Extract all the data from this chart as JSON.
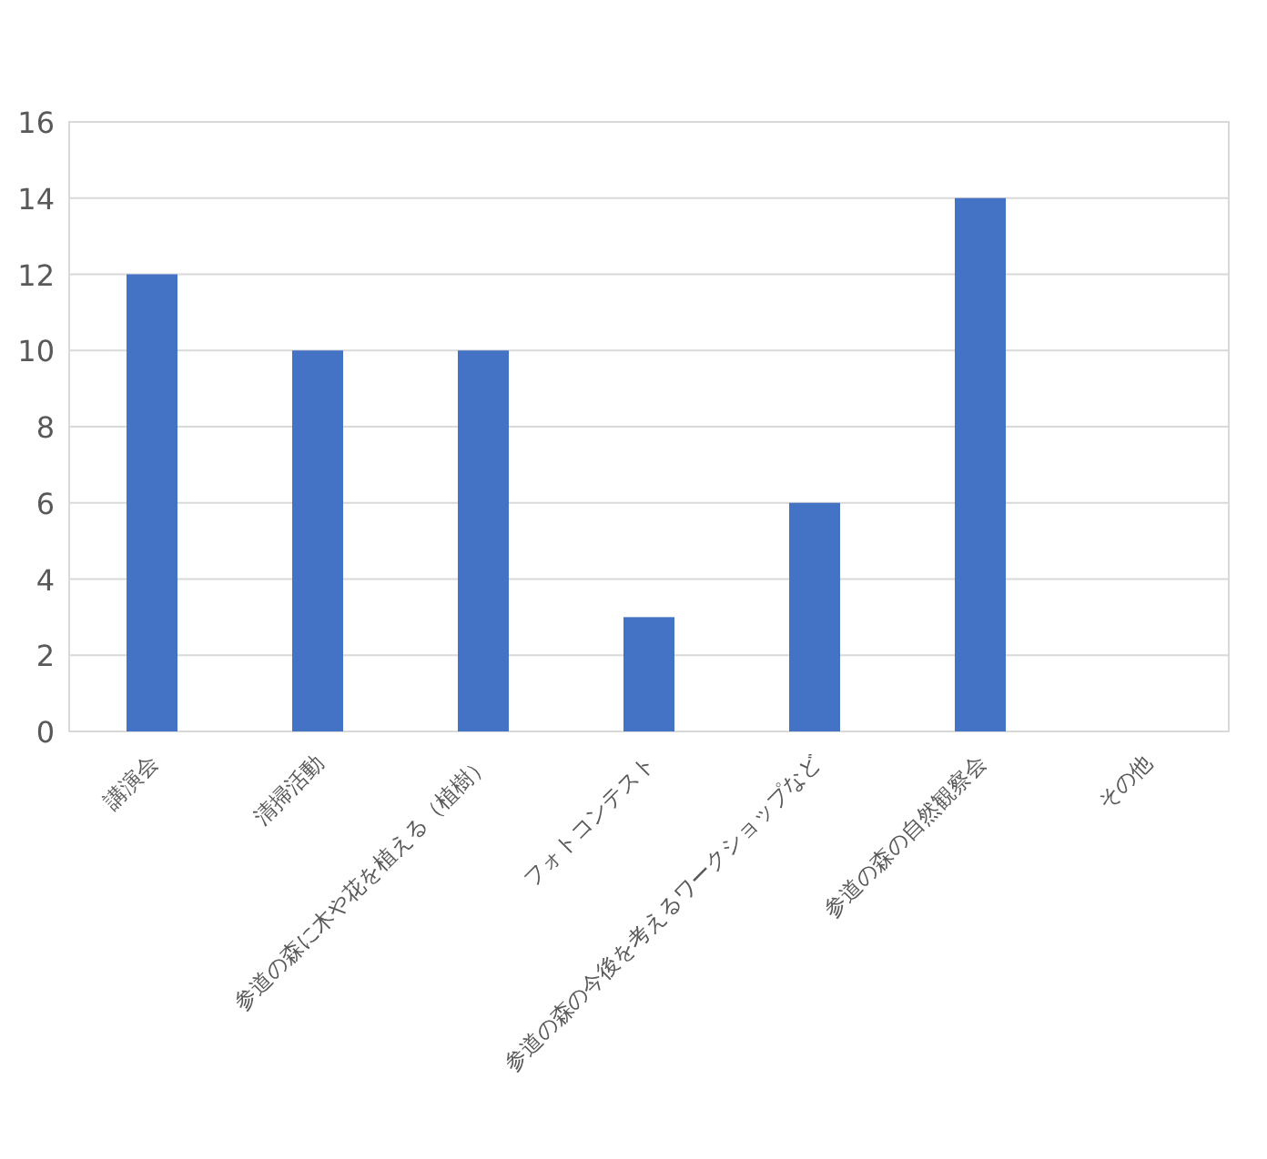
{
  "chart_data": {
    "type": "bar",
    "categories": [
      "講演会",
      "清掃活動",
      "参道の森に木や花を植える（植樹）",
      "フォトコンテスト",
      "参道の森の今後を考えるワークショップなど",
      "参道の森の自然観察会",
      "その他"
    ],
    "values": [
      12,
      10,
      10,
      3,
      6,
      14,
      0
    ],
    "color": "#4472c4",
    "ylim": [
      0,
      16
    ],
    "yticks": [
      0,
      2,
      4,
      6,
      8,
      10,
      12,
      14,
      16
    ],
    "grid": "y"
  }
}
